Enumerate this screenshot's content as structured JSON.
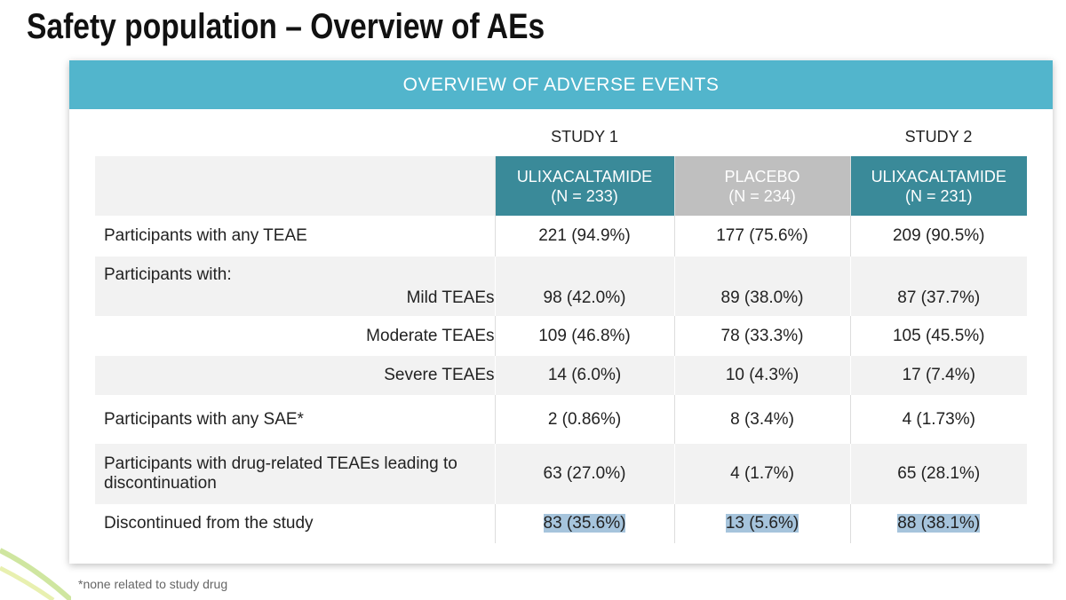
{
  "header": {
    "title": "Safety population – Overview of AEs"
  },
  "panel": {
    "title": "OVERVIEW OF ADVERSE EVENTS"
  },
  "table": {
    "study_labels": [
      "STUDY 1",
      "STUDY 2"
    ],
    "columns": [
      {
        "name": "ULIXACALTAMIDE",
        "n": "(N = 233)"
      },
      {
        "name": "PLACEBO",
        "n": "(N = 234)"
      },
      {
        "name": "ULIXACALTAMIDE",
        "n": "(N = 231)"
      }
    ],
    "rows": [
      {
        "label": "Participants with any TEAE",
        "values": [
          "221 (94.9%)",
          "177 (75.6%)",
          "209 (90.5%)"
        ]
      },
      {
        "group": "Participants with:",
        "label": "Mild TEAEs",
        "values": [
          "98 (42.0%)",
          "89 (38.0%)",
          "87 (37.7%)"
        ]
      },
      {
        "label": "Moderate TEAEs",
        "values": [
          "109 (46.8%)",
          "78 (33.3%)",
          "105 (45.5%)"
        ]
      },
      {
        "label": "Severe TEAEs",
        "values": [
          "14 (6.0%)",
          "10 (4.3%)",
          "17 (7.4%)"
        ]
      },
      {
        "label": "Participants with any SAE*",
        "values": [
          "2 (0.86%)",
          "8 (3.4%)",
          "4 (1.73%)"
        ]
      },
      {
        "label": "Participants with drug-related TEAEs leading to discontinuation",
        "values": [
          "63 (27.0%)",
          "4 (1.7%)",
          "65 (28.1%)"
        ]
      },
      {
        "label": "Discontinued from the study",
        "values": [
          "83 (35.6%)",
          "13 (5.6%)",
          "88 (38.1%)"
        ]
      }
    ]
  },
  "footnote": "*none related to study drug"
}
